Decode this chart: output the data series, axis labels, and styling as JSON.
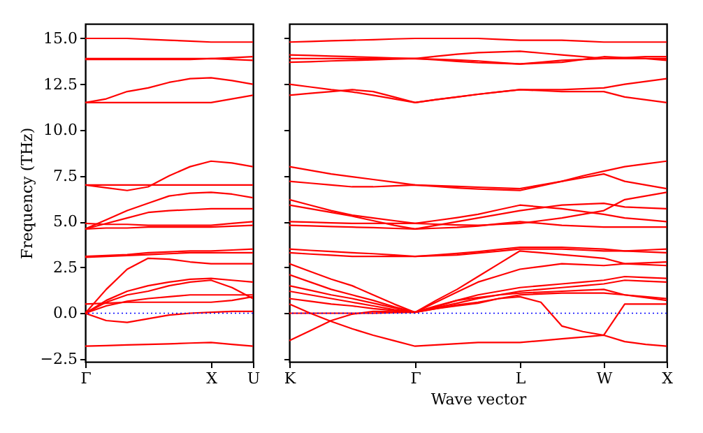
{
  "chart_data": [
    {
      "type": "line",
      "ylabel": "Frequency (THz)",
      "categories": [
        "Γ",
        null,
        null,
        null,
        null,
        null,
        "X",
        null,
        "U"
      ],
      "ylim": [
        -2.65,
        15.8
      ],
      "yticks": [
        {
          "value": -2.5,
          "label": "−2.5"
        },
        {
          "value": 0,
          "label": "0.0"
        },
        {
          "value": 2.5,
          "label": "2.5"
        },
        {
          "value": 5,
          "label": "5.0"
        },
        {
          "value": 7.5,
          "label": "7.5"
        },
        {
          "value": 10,
          "label": "10.0"
        },
        {
          "value": 12.5,
          "label": "12.5"
        },
        {
          "value": 15,
          "label": "15.0"
        }
      ],
      "series": [
        {
          "color": "#ff0000",
          "values": [
            15.0,
            15.0,
            15.0,
            14.95,
            14.9,
            14.85,
            14.8,
            14.8,
            14.8
          ]
        },
        {
          "color": "#ff0000",
          "values": [
            13.9,
            13.9,
            13.9,
            13.9,
            13.9,
            13.9,
            13.9,
            13.95,
            14.0
          ]
        },
        {
          "color": "#ff0000",
          "values": [
            13.85,
            13.85,
            13.85,
            13.85,
            13.85,
            13.85,
            13.9,
            13.85,
            13.8
          ]
        },
        {
          "color": "#ff0000",
          "values": [
            11.5,
            11.7,
            12.1,
            12.3,
            12.6,
            12.8,
            12.85,
            12.7,
            12.5
          ]
        },
        {
          "color": "#ff0000",
          "values": [
            11.5,
            11.5,
            11.5,
            11.5,
            11.5,
            11.5,
            11.5,
            11.7,
            11.9
          ]
        },
        {
          "color": "#ff0000",
          "values": [
            7.0,
            6.85,
            6.7,
            6.9,
            7.5,
            8.0,
            8.3,
            8.2,
            8.0
          ]
        },
        {
          "color": "#ff0000",
          "values": [
            7.0,
            7.0,
            7.0,
            7.0,
            7.0,
            7.0,
            7.0,
            7.0,
            7.0
          ]
        },
        {
          "color": "#ff0000",
          "values": [
            4.6,
            5.1,
            5.6,
            6.0,
            6.4,
            6.55,
            6.6,
            6.5,
            6.3
          ]
        },
        {
          "color": "#ff0000",
          "values": [
            4.6,
            4.9,
            5.2,
            5.5,
            5.6,
            5.65,
            5.7,
            5.7,
            5.7
          ]
        },
        {
          "color": "#ff0000",
          "values": [
            4.9,
            4.85,
            4.85,
            4.8,
            4.8,
            4.8,
            4.8,
            4.9,
            5.0
          ]
        },
        {
          "color": "#ff0000",
          "values": [
            4.6,
            4.65,
            4.65,
            4.7,
            4.7,
            4.7,
            4.7,
            4.75,
            4.8
          ]
        },
        {
          "color": "#ff0000",
          "values": [
            3.1,
            3.15,
            3.2,
            3.3,
            3.35,
            3.4,
            3.4,
            3.45,
            3.5
          ]
        },
        {
          "color": "#ff0000",
          "values": [
            3.05,
            3.1,
            3.15,
            3.2,
            3.25,
            3.3,
            3.3,
            3.3,
            3.3
          ]
        },
        {
          "color": "#ff0000",
          "values": [
            0,
            1.3,
            2.4,
            3.0,
            2.95,
            2.8,
            2.7,
            2.7,
            2.7
          ]
        },
        {
          "color": "#ff0000",
          "values": [
            0,
            0.7,
            1.2,
            1.5,
            1.7,
            1.85,
            1.9,
            1.8,
            1.7
          ]
        },
        {
          "color": "#ff0000",
          "values": [
            0,
            0.6,
            1.0,
            1.2,
            1.5,
            1.7,
            1.8,
            1.4,
            0.8
          ]
        },
        {
          "color": "#ff0000",
          "values": [
            0.5,
            0.55,
            0.6,
            0.6,
            0.6,
            0.6,
            0.6,
            0.7,
            0.9
          ]
        },
        {
          "color": "#ff0000",
          "values": [
            0,
            0.4,
            0.65,
            0.8,
            0.9,
            1.0,
            1.0,
            1.0,
            1.0
          ]
        },
        {
          "color": "#ff0000",
          "values": [
            0,
            -0.4,
            -0.5,
            -0.3,
            -0.1,
            0.0,
            0.05,
            0.1,
            0.1
          ]
        },
        {
          "color": "#ff0000",
          "values": [
            -1.8,
            -1.77,
            -1.73,
            -1.7,
            -1.67,
            -1.63,
            -1.6,
            -1.7,
            -1.8
          ]
        }
      ],
      "ref_lines": [
        {
          "axis": "y",
          "value": 0,
          "color": "#0000ff",
          "line_style": "dotted"
        }
      ]
    },
    {
      "type": "line",
      "xlabel": "Wave vector",
      "tick_labels": "x",
      "categories": [
        "K",
        null,
        null,
        null,
        null,
        null,
        "Γ",
        null,
        null,
        null,
        null,
        "L",
        null,
        null,
        null,
        "W",
        null,
        null,
        "X"
      ],
      "ylim": [
        -2.65,
        15.8
      ],
      "yticks": [
        -2.5,
        0,
        2.5,
        5,
        7.5,
        10,
        12.5,
        15
      ],
      "series": [
        {
          "color": "#ff0000",
          "values": [
            14.8,
            14.83,
            14.87,
            14.9,
            14.93,
            14.97,
            15.0,
            15.0,
            15.0,
            15.0,
            14.95,
            14.9,
            14.9,
            14.9,
            14.85,
            14.8,
            14.8,
            14.8,
            14.8
          ]
        },
        {
          "color": "#ff0000",
          "values": [
            14.1,
            14.07,
            14.03,
            14.0,
            13.97,
            13.93,
            13.9,
            13.83,
            13.75,
            13.68,
            13.64,
            13.6,
            13.7,
            13.8,
            13.85,
            13.9,
            13.9,
            13.9,
            13.9
          ]
        },
        {
          "color": "#ff0000",
          "values": [
            13.9,
            13.9,
            13.9,
            13.9,
            13.9,
            13.9,
            13.9,
            14.02,
            14.14,
            14.22,
            14.26,
            14.3,
            14.2,
            14.1,
            14.0,
            13.9,
            13.95,
            14.0,
            14.0
          ]
        },
        {
          "color": "#ff0000",
          "values": [
            13.7,
            13.73,
            13.77,
            13.8,
            13.83,
            13.87,
            13.9,
            13.86,
            13.82,
            13.77,
            13.68,
            13.6,
            13.65,
            13.7,
            13.85,
            14.0,
            13.95,
            13.9,
            13.8
          ]
        },
        {
          "color": "#ff0000",
          "values": [
            12.5,
            12.35,
            12.2,
            12.08,
            11.9,
            11.7,
            11.5,
            11.66,
            11.8,
            11.95,
            12.08,
            12.2,
            12.2,
            12.2,
            12.25,
            12.3,
            12.5,
            12.65,
            12.8
          ]
        },
        {
          "color": "#ff0000",
          "values": [
            11.9,
            12.0,
            12.1,
            12.2,
            12.1,
            11.8,
            11.5,
            11.66,
            11.8,
            11.95,
            12.08,
            12.2,
            12.15,
            12.1,
            12.1,
            12.1,
            11.8,
            11.65,
            11.5
          ]
        },
        {
          "color": "#ff0000",
          "values": [
            8.0,
            7.8,
            7.6,
            7.45,
            7.3,
            7.15,
            7.0,
            6.92,
            6.84,
            6.78,
            6.74,
            6.7,
            6.95,
            7.2,
            7.5,
            7.75,
            8.0,
            8.15,
            8.3
          ]
        },
        {
          "color": "#ff0000",
          "values": [
            7.2,
            7.1,
            7.0,
            6.9,
            6.9,
            6.95,
            7.0,
            6.96,
            6.92,
            6.88,
            6.84,
            6.8,
            7.0,
            7.2,
            7.4,
            7.6,
            7.2,
            7.0,
            6.8
          ]
        },
        {
          "color": "#ff0000",
          "values": [
            6.2,
            5.9,
            5.6,
            5.35,
            5.2,
            5.05,
            4.9,
            5.06,
            5.22,
            5.4,
            5.65,
            5.9,
            5.8,
            5.7,
            5.55,
            5.4,
            5.2,
            5.1,
            5.0
          ]
        },
        {
          "color": "#ff0000",
          "values": [
            5.9,
            5.7,
            5.5,
            5.3,
            5.05,
            4.8,
            4.6,
            4.8,
            5.0,
            5.2,
            5.4,
            5.6,
            5.75,
            5.9,
            5.95,
            6.0,
            5.8,
            5.75,
            5.7
          ]
        },
        {
          "color": "#ff0000",
          "values": [
            5.0,
            4.97,
            4.93,
            4.9,
            4.9,
            4.9,
            4.9,
            4.86,
            4.82,
            4.8,
            4.85,
            4.9,
            5.05,
            5.2,
            5.4,
            5.6,
            6.2,
            6.4,
            6.6
          ]
        },
        {
          "color": "#ff0000",
          "values": [
            4.8,
            4.77,
            4.73,
            4.7,
            4.67,
            4.63,
            4.6,
            4.64,
            4.68,
            4.76,
            4.88,
            5.0,
            4.9,
            4.8,
            4.75,
            4.7,
            4.7,
            4.7,
            4.7
          ]
        },
        {
          "color": "#ff0000",
          "values": [
            3.5,
            3.43,
            3.37,
            3.3,
            3.25,
            3.18,
            3.1,
            3.18,
            3.26,
            3.36,
            3.48,
            3.6,
            3.6,
            3.6,
            3.55,
            3.5,
            3.4,
            3.45,
            3.5
          ]
        },
        {
          "color": "#ff0000",
          "values": [
            3.3,
            3.23,
            3.17,
            3.1,
            3.1,
            3.1,
            3.1,
            3.14,
            3.18,
            3.28,
            3.39,
            3.5,
            3.5,
            3.5,
            3.45,
            3.4,
            3.4,
            3.35,
            3.3
          ]
        },
        {
          "color": "#ff0000",
          "values": [
            2.7,
            2.28,
            1.86,
            1.5,
            1.0,
            0.5,
            0.05,
            0.6,
            1.15,
            1.7,
            2.05,
            2.4,
            2.55,
            2.7,
            2.65,
            2.6,
            2.7,
            2.75,
            2.8
          ]
        },
        {
          "color": "#ff0000",
          "values": [
            2.1,
            1.7,
            1.3,
            1.0,
            0.7,
            0.35,
            0.05,
            0.7,
            1.3,
            2.0,
            2.7,
            3.4,
            3.3,
            3.2,
            3.1,
            3.0,
            2.7,
            2.65,
            2.6
          ]
        },
        {
          "color": "#ff0000",
          "values": [
            1.5,
            1.25,
            1.0,
            0.8,
            0.55,
            0.3,
            0.05,
            0.4,
            0.7,
            1.0,
            1.2,
            1.4,
            1.5,
            1.6,
            1.7,
            1.8,
            2.0,
            1.95,
            1.9
          ]
        },
        {
          "color": "#ff0000",
          "values": [
            1.2,
            1.0,
            0.8,
            0.6,
            0.4,
            0.2,
            0.05,
            0.3,
            0.55,
            0.8,
            1.0,
            1.2,
            1.3,
            1.4,
            1.5,
            1.6,
            1.8,
            1.75,
            1.7
          ]
        },
        {
          "color": "#ff0000",
          "values": [
            0.8,
            0.65,
            0.5,
            0.4,
            0.25,
            0.15,
            0.05,
            0.25,
            0.45,
            0.6,
            0.8,
            1.0,
            1.05,
            1.1,
            1.1,
            1.1,
            1.0,
            0.85,
            0.7
          ]
        },
        {
          "color": "#ff0000",
          "values": [
            0.0,
            0.0,
            0.0,
            0.0,
            0.0,
            0.03,
            0.05,
            0.35,
            0.7,
            0.85,
            1.0,
            1.1,
            1.15,
            1.2,
            1.25,
            1.3,
            1.0,
            0.9,
            0.8
          ]
        },
        {
          "color": "#ff0000",
          "values": [
            0.5,
            0.0,
            -0.45,
            -0.85,
            -1.2,
            -1.5,
            -1.8,
            -1.73,
            -1.66,
            -1.6,
            -1.6,
            -1.6,
            -1.5,
            -1.4,
            -1.3,
            -1.2,
            -1.55,
            -1.7,
            -1.8
          ]
        },
        {
          "color": "#ff0000",
          "values": [
            -1.5,
            -0.95,
            -0.4,
            -0.05,
            0.1,
            0.08,
            0.05,
            0.25,
            0.4,
            0.55,
            0.8,
            0.9,
            0.6,
            -0.7,
            -1.0,
            -1.2,
            0.5,
            0.5,
            0.5
          ]
        }
      ],
      "ref_lines": [
        {
          "axis": "y",
          "value": 0,
          "color": "#0000ff",
          "line_style": "dotted"
        }
      ]
    }
  ]
}
